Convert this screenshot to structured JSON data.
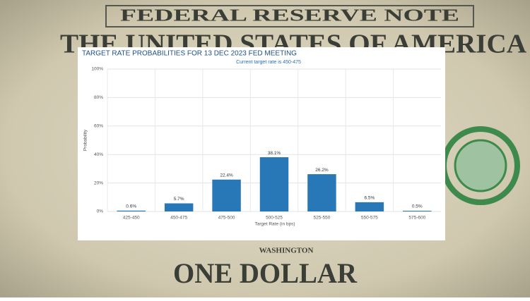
{
  "background": {
    "top_text": "FEDERAL RESERVE NOTE",
    "country": "THE UNITED STATES OF AMERICA",
    "denomination": "ONE DOLLAR",
    "city": "WASHINGTON"
  },
  "chart_data": {
    "type": "bar",
    "title": "TARGET RATE PROBABILITIES FOR 13 DEC 2023 FED MEETING",
    "subtitle": "Current target rate is 450-475",
    "x_label": "Target Rate (in bps)",
    "y_label": "Probability",
    "categories": [
      "425-450",
      "450-475",
      "475-500",
      "500-525",
      "525-550",
      "550-575",
      "575-600"
    ],
    "values": [
      0.6,
      5.7,
      22.4,
      38.1,
      26.2,
      6.5,
      0.5
    ],
    "value_labels": [
      "0.6%",
      "5.7%",
      "22.4%",
      "38.1%",
      "26.2%",
      "6.5%",
      "0.5%"
    ],
    "color": "#2878b8",
    "ylim": [
      0,
      100
    ],
    "yticks": [
      {
        "value": 0,
        "label": "0%"
      },
      {
        "value": 20,
        "label": "20%"
      },
      {
        "value": 40,
        "label": "40%"
      },
      {
        "value": 60,
        "label": "60%"
      },
      {
        "value": 80,
        "label": "80%"
      },
      {
        "value": 100,
        "label": "100%"
      }
    ],
    "grid": true
  }
}
